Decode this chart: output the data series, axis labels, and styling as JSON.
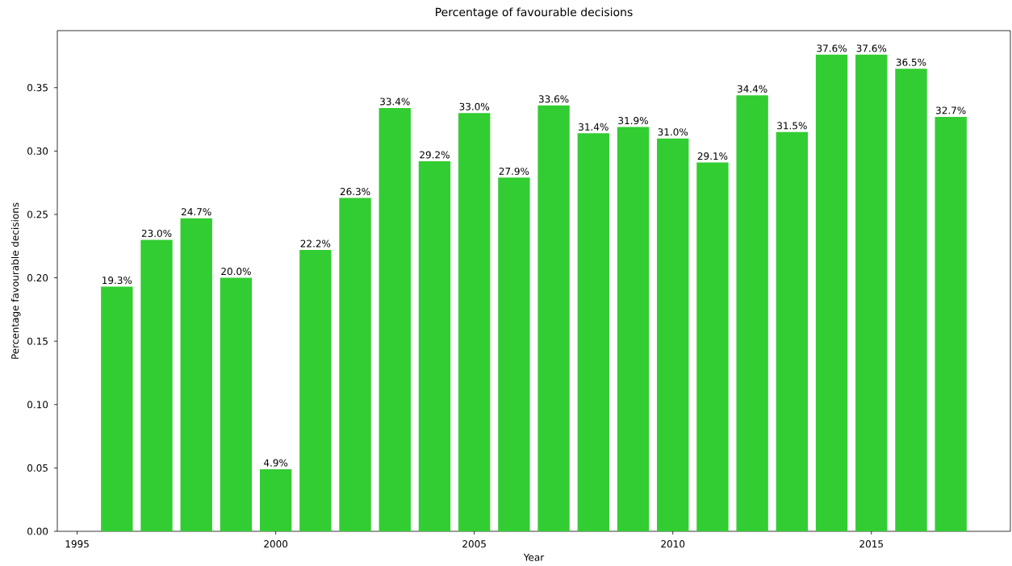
{
  "chart_data": {
    "type": "bar",
    "title": "Percentage of favourable decisions",
    "xlabel": "Year",
    "ylabel": "Percentage favourable decisions",
    "x": [
      1996,
      1997,
      1998,
      1999,
      2000,
      2001,
      2002,
      2003,
      2004,
      2005,
      2006,
      2007,
      2008,
      2009,
      2010,
      2011,
      2012,
      2013,
      2014,
      2015,
      2016,
      2017
    ],
    "values": [
      0.193,
      0.23,
      0.247,
      0.2,
      0.049,
      0.222,
      0.263,
      0.334,
      0.292,
      0.33,
      0.279,
      0.336,
      0.314,
      0.319,
      0.31,
      0.291,
      0.344,
      0.315,
      0.376,
      0.376,
      0.365,
      0.327
    ],
    "value_labels": [
      "19.3%",
      "23.0%",
      "24.7%",
      "20.0%",
      "4.9%",
      "22.2%",
      "26.3%",
      "33.4%",
      "29.2%",
      "33.0%",
      "27.9%",
      "33.6%",
      "31.4%",
      "31.9%",
      "31.0%",
      "29.1%",
      "34.4%",
      "31.5%",
      "37.6%",
      "37.6%",
      "36.5%",
      "32.7%"
    ],
    "color": "#32cd32",
    "xlim": [
      1994.5,
      2018.5
    ],
    "ylim": [
      0,
      0.395
    ],
    "xticks": [
      1995,
      2000,
      2005,
      2010,
      2015
    ],
    "yticks": [
      {
        "value": 0,
        "label": "0.00"
      },
      {
        "value": 0.05,
        "label": "0.05"
      },
      {
        "value": 0.1,
        "label": "0.10"
      },
      {
        "value": 0.15,
        "label": "0.15"
      },
      {
        "value": 0.2,
        "label": "0.20"
      },
      {
        "value": 0.25,
        "label": "0.25"
      },
      {
        "value": 0.3,
        "label": "0.30"
      },
      {
        "value": 0.35,
        "label": "0.35"
      }
    ]
  }
}
